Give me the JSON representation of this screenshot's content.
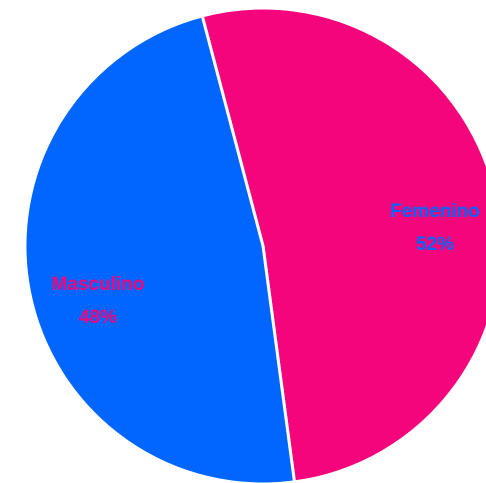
{
  "chart_data": {
    "type": "pie",
    "categories": [
      "Femenino",
      "Masculino"
    ],
    "values": [
      52,
      48
    ],
    "value_labels": [
      "52%",
      "48%"
    ],
    "colors": [
      "#f5057b",
      "#0066ff"
    ],
    "label_colors": [
      "#f5057b",
      "#0066ff"
    ]
  }
}
